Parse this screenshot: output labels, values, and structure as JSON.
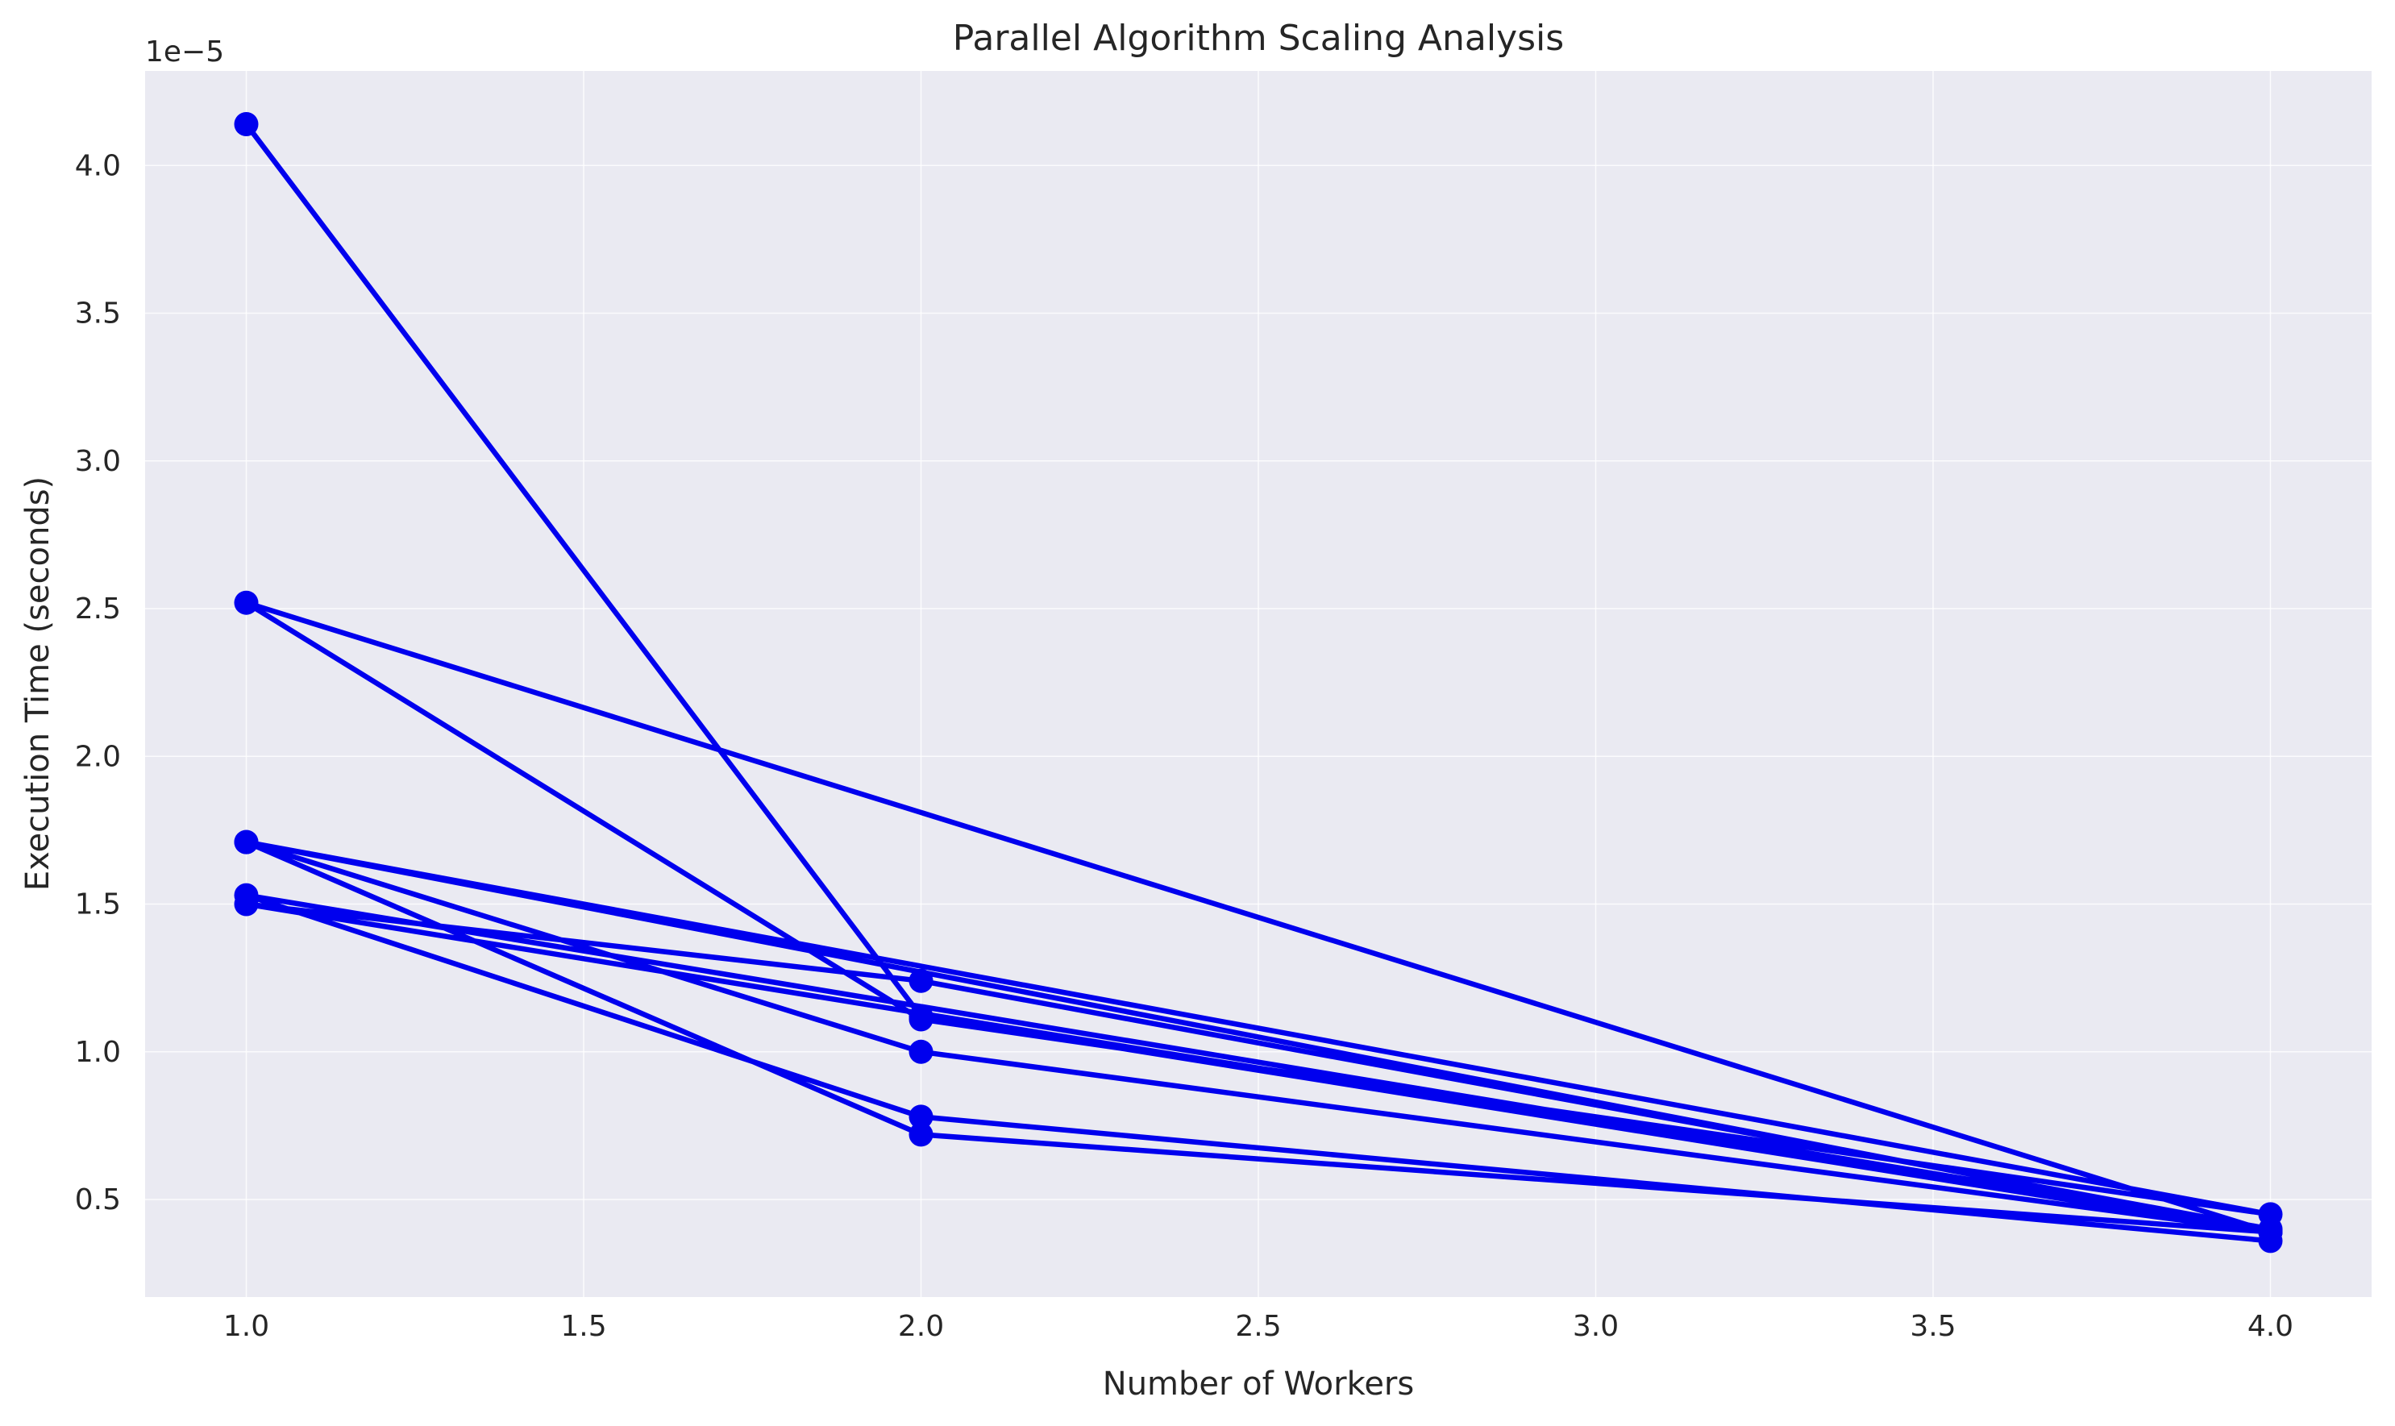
{
  "chart_data": {
    "type": "line",
    "title": "Parallel Algorithm Scaling Analysis",
    "xlabel": "Number of Workers",
    "ylabel": "Execution Time (seconds)",
    "y_offset_label": "1e−5",
    "xlim": [
      0.85,
      4.15
    ],
    "ylim": [
      0.17,
      4.32
    ],
    "xticks": [
      1.0,
      1.5,
      2.0,
      2.5,
      3.0,
      3.5,
      4.0
    ],
    "xtick_labels": [
      "1.0",
      "1.5",
      "2.0",
      "2.5",
      "3.0",
      "3.5",
      "4.0"
    ],
    "yticks": [
      0.5,
      1.0,
      1.5,
      2.0,
      2.5,
      3.0,
      3.5,
      4.0
    ],
    "ytick_labels": [
      "0.5",
      "1.0",
      "1.5",
      "2.0",
      "2.5",
      "3.0",
      "3.5",
      "4.0"
    ],
    "grid": true,
    "line_color": "#0000ee",
    "background_color": "#eaeaf2",
    "x": [
      1,
      2,
      4,
      1,
      2,
      4,
      1,
      2,
      4,
      1,
      2,
      4,
      1,
      2,
      4,
      1,
      2,
      4
    ],
    "y": [
      4.14,
      1.12,
      0.39,
      2.52,
      1.11,
      0.45,
      1.71,
      0.72,
      0.39,
      1.71,
      1.0,
      0.39,
      1.5,
      1.24,
      0.4,
      1.53,
      0.78,
      0.36
    ]
  }
}
